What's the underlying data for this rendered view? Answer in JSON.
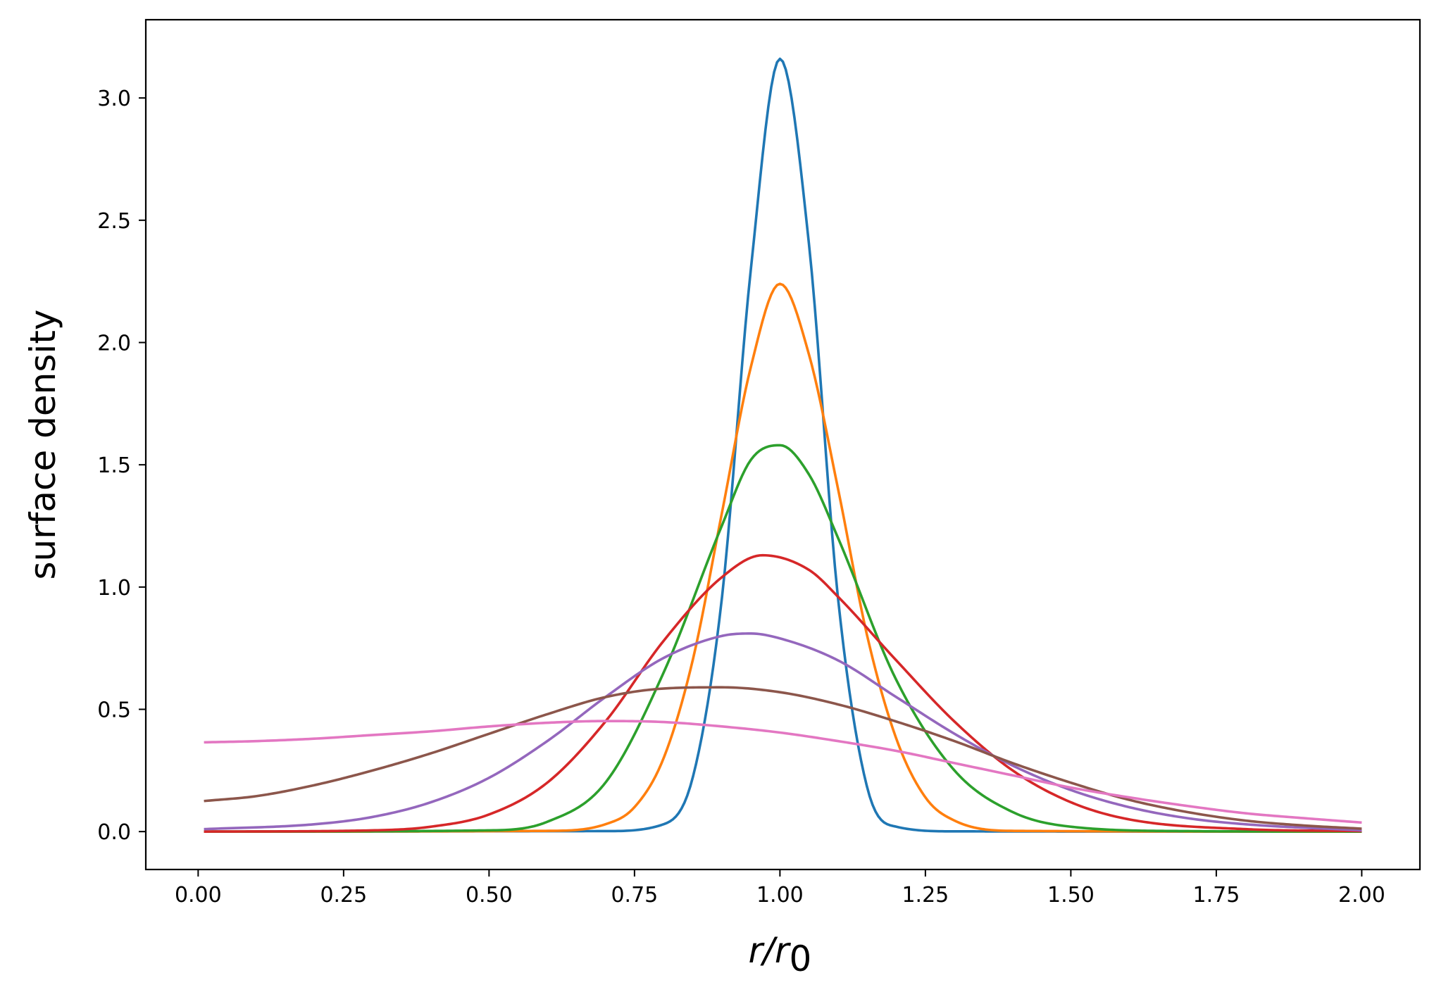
{
  "chart_data": {
    "type": "line",
    "title": "",
    "xlabel": {
      "base": "r/r",
      "sub": "0"
    },
    "ylabel": "surface density",
    "xlim": [
      -0.09,
      2.1
    ],
    "ylim": [
      -0.155,
      3.32
    ],
    "xticks": [
      0.0,
      0.25,
      0.5,
      0.75,
      1.0,
      1.25,
      1.5,
      1.75,
      2.0
    ],
    "xtick_labels": [
      "0.00",
      "0.25",
      "0.50",
      "0.75",
      "1.00",
      "1.25",
      "1.50",
      "1.75",
      "2.00"
    ],
    "yticks": [
      0.0,
      0.5,
      1.0,
      1.5,
      2.0,
      2.5,
      3.0
    ],
    "ytick_labels": [
      "0.0",
      "0.5",
      "1.0",
      "1.5",
      "2.0",
      "2.5",
      "3.0"
    ],
    "grid": false,
    "legend": "none",
    "series": [
      {
        "color": "#1f77b4",
        "x": [
          0.01,
          0.7,
          0.8,
          0.85,
          0.9,
          0.95,
          1.0,
          1.05,
          1.1,
          1.15,
          1.2,
          1.3,
          2.0
        ],
        "y": [
          0.0,
          0.002,
          0.03,
          0.22,
          0.95,
          2.3,
          3.16,
          2.4,
          0.95,
          0.18,
          0.02,
          0.001,
          0.0
        ]
      },
      {
        "color": "#ff7f0e",
        "x": [
          0.01,
          0.6,
          0.7,
          0.75,
          0.8,
          0.85,
          0.9,
          0.95,
          1.0,
          1.05,
          1.1,
          1.15,
          1.2,
          1.25,
          1.3,
          1.4,
          2.0
        ],
        "y": [
          0.0,
          0.003,
          0.03,
          0.1,
          0.3,
          0.7,
          1.3,
          1.9,
          2.24,
          1.95,
          1.4,
          0.8,
          0.38,
          0.14,
          0.045,
          0.003,
          0.0
        ]
      },
      {
        "color": "#2ca02c",
        "x": [
          0.01,
          0.5,
          0.6,
          0.7,
          0.8,
          0.9,
          0.95,
          1.0,
          1.05,
          1.1,
          1.2,
          1.3,
          1.4,
          1.5,
          1.7,
          2.0
        ],
        "y": [
          0.0,
          0.005,
          0.04,
          0.2,
          0.65,
          1.25,
          1.52,
          1.58,
          1.46,
          1.2,
          0.62,
          0.25,
          0.08,
          0.02,
          0.002,
          0.0
        ]
      },
      {
        "color": "#d62728",
        "x": [
          0.01,
          0.3,
          0.4,
          0.5,
          0.6,
          0.7,
          0.8,
          0.9,
          0.97,
          1.05,
          1.1,
          1.2,
          1.3,
          1.4,
          1.5,
          1.6,
          1.8,
          2.0
        ],
        "y": [
          0.0,
          0.005,
          0.02,
          0.07,
          0.2,
          0.45,
          0.78,
          1.04,
          1.13,
          1.07,
          0.96,
          0.7,
          0.45,
          0.25,
          0.12,
          0.05,
          0.01,
          0.002
        ]
      },
      {
        "color": "#9467bd",
        "x": [
          0.01,
          0.2,
          0.3,
          0.4,
          0.5,
          0.6,
          0.7,
          0.8,
          0.9,
          0.95,
          1.0,
          1.1,
          1.2,
          1.3,
          1.4,
          1.5,
          1.6,
          1.7,
          1.8,
          2.0
        ],
        "y": [
          0.01,
          0.03,
          0.06,
          0.12,
          0.22,
          0.37,
          0.55,
          0.71,
          0.8,
          0.81,
          0.79,
          0.7,
          0.55,
          0.4,
          0.27,
          0.17,
          0.1,
          0.055,
          0.03,
          0.005
        ]
      },
      {
        "color": "#8c564b",
        "x": [
          0.01,
          0.1,
          0.2,
          0.3,
          0.4,
          0.5,
          0.6,
          0.7,
          0.8,
          0.9,
          1.0,
          1.1,
          1.2,
          1.3,
          1.4,
          1.5,
          1.6,
          1.7,
          1.8,
          1.9,
          2.0
        ],
        "y": [
          0.125,
          0.145,
          0.19,
          0.25,
          0.32,
          0.4,
          0.48,
          0.55,
          0.585,
          0.59,
          0.57,
          0.52,
          0.45,
          0.37,
          0.28,
          0.2,
          0.13,
          0.08,
          0.045,
          0.025,
          0.012
        ]
      },
      {
        "color": "#e377c2",
        "x": [
          0.01,
          0.1,
          0.2,
          0.3,
          0.4,
          0.5,
          0.6,
          0.7,
          0.8,
          0.9,
          1.0,
          1.1,
          1.2,
          1.3,
          1.4,
          1.5,
          1.6,
          1.7,
          1.8,
          1.9,
          2.0
        ],
        "y": [
          0.365,
          0.37,
          0.38,
          0.395,
          0.41,
          0.43,
          0.445,
          0.452,
          0.448,
          0.43,
          0.405,
          0.37,
          0.33,
          0.28,
          0.23,
          0.18,
          0.14,
          0.105,
          0.075,
          0.055,
          0.037
        ]
      }
    ]
  }
}
